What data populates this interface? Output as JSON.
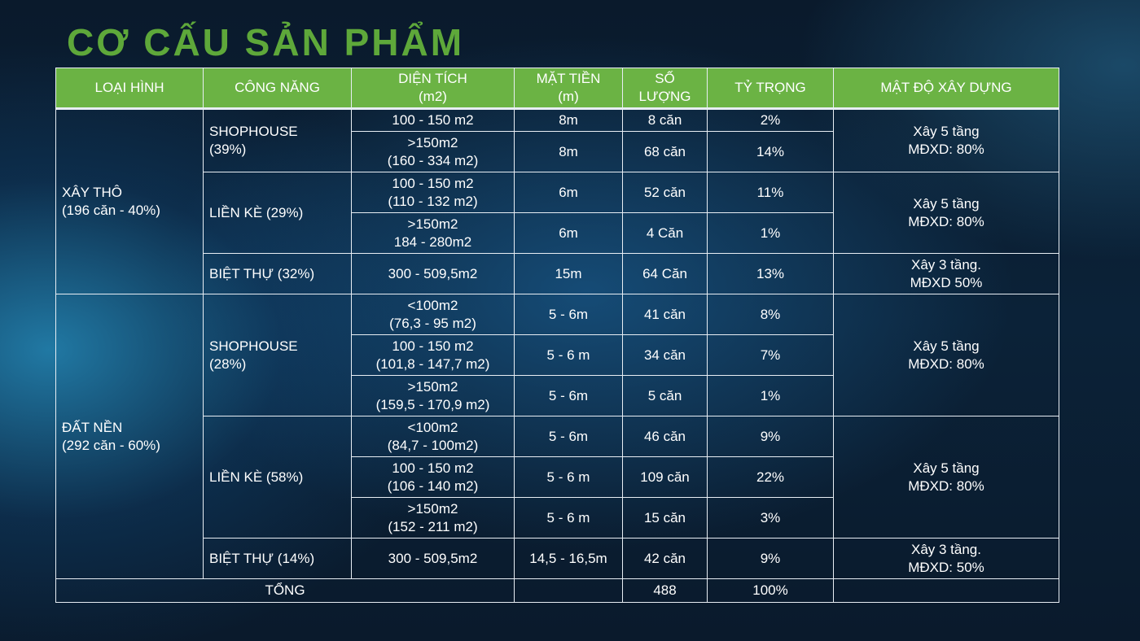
{
  "title": "CƠ CẤU SẢN PHẨM",
  "colors": {
    "title": "#5ea83a",
    "header_bg": "#6bb344",
    "border": "#e8eef4"
  },
  "headers": [
    "LOẠI HÌNH",
    "CÔNG NĂNG",
    "DIỆN TÍCH\n(m2)",
    "MẶT TIỀN\n(m)",
    "SỐ\nLƯỢNG",
    "TỶ TRỌNG",
    "MẬT ĐỘ XÂY DỰNG"
  ],
  "groups": {
    "xay_tho": "XÂY THÔ\n(196 căn - 40%)",
    "dat_nen": "ĐẤT NỀN\n(292 căn - 60%)"
  },
  "functions": {
    "f1": "SHOPHOUSE\n(39%)",
    "f2": "LIỀN KÈ (29%)",
    "f3": "BIỆT THỰ (32%)",
    "f4": "SHOPHOUSE\n(28%)",
    "f5": "LIỀN KÈ (58%)",
    "f6": "BIỆT THỰ (14%)"
  },
  "density": {
    "d1": "Xây 5 tầng\nMĐXD: 80%",
    "d2": "Xây 5 tầng\nMĐXD: 80%",
    "d3": "Xây 3 tầng.\nMĐXD 50%",
    "d4": "Xây 5 tầng\nMĐXD: 80%",
    "d5": "Xây 5 tầng\nMĐXD: 80%",
    "d6": "Xây 3 tầng.\nMĐXD: 50%"
  },
  "rows": [
    {
      "area": "100 - 150 m2",
      "frontage": "8m",
      "qty": "8 căn",
      "ratio": "2%"
    },
    {
      "area": ">150m2\n(160 - 334 m2)",
      "frontage": "8m",
      "qty": "68 căn",
      "ratio": "14%"
    },
    {
      "area": "100 - 150 m2\n(110 - 132 m2)",
      "frontage": "6m",
      "qty": "52 căn",
      "ratio": "11%"
    },
    {
      "area": ">150m2\n184 - 280m2",
      "frontage": "6m",
      "qty": "4 Căn",
      "ratio": "1%"
    },
    {
      "area": "300 - 509,5m2",
      "frontage": "15m",
      "qty": "64 Căn",
      "ratio": "13%"
    },
    {
      "area": "<100m2\n(76,3 - 95 m2)",
      "frontage": "5 - 6m",
      "qty": "41 căn",
      "ratio": "8%"
    },
    {
      "area": "100 - 150 m2\n(101,8 - 147,7 m2)",
      "frontage": "5 - 6 m",
      "qty": "34 căn",
      "ratio": "7%"
    },
    {
      "area": ">150m2\n(159,5 - 170,9 m2)",
      "frontage": "5 - 6m",
      "qty": "5 căn",
      "ratio": "1%"
    },
    {
      "area": "<100m2\n(84,7 - 100m2)",
      "frontage": "5 - 6m",
      "qty": "46 căn",
      "ratio": "9%"
    },
    {
      "area": "100 - 150 m2\n(106 - 140 m2)",
      "frontage": "5 - 6 m",
      "qty": "109 căn",
      "ratio": "22%"
    },
    {
      "area": ">150m2\n(152 - 211 m2)",
      "frontage": "5 - 6 m",
      "qty": "15 căn",
      "ratio": "3%"
    },
    {
      "area": "300 - 509,5m2",
      "frontage": "14,5 - 16,5m",
      "qty": "42 căn",
      "ratio": "9%"
    }
  ],
  "total": {
    "label": "TỔNG",
    "qty": "488",
    "ratio": "100%"
  }
}
